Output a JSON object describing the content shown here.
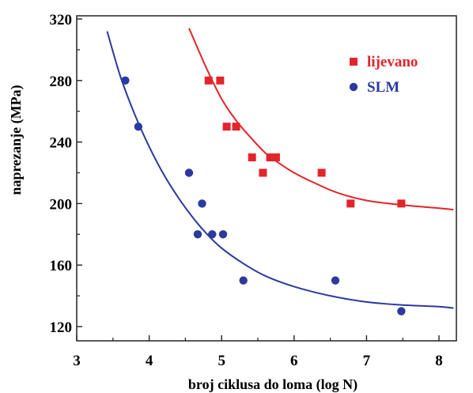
{
  "chart_data": {
    "type": "scatter",
    "title": "",
    "xlabel": "broj ciklusa do loma (log N)",
    "ylabel": "naprezanje (MPa)",
    "xlim": [
      3,
      8.3
    ],
    "ylim": [
      110,
      320
    ],
    "xticks": [
      3,
      4,
      5,
      6,
      7,
      8
    ],
    "yticks": [
      120,
      160,
      200,
      240,
      280,
      320
    ],
    "legend_position": "top-right",
    "series": [
      {
        "name": "lijevano",
        "color": "#e3242b",
        "marker": "square",
        "points": [
          [
            4.82,
            280
          ],
          [
            4.98,
            280
          ],
          [
            5.07,
            250
          ],
          [
            5.2,
            250
          ],
          [
            5.42,
            230
          ],
          [
            5.57,
            220
          ],
          [
            5.67,
            230
          ],
          [
            5.75,
            230
          ],
          [
            6.38,
            220
          ],
          [
            6.78,
            200
          ],
          [
            7.48,
            200
          ]
        ],
        "fit_curve": [
          [
            4.55,
            314
          ],
          [
            4.8,
            287
          ],
          [
            5.0,
            268
          ],
          [
            5.2,
            254
          ],
          [
            5.4,
            243
          ],
          [
            5.6,
            233
          ],
          [
            5.8,
            226
          ],
          [
            6.0,
            220
          ],
          [
            6.3,
            213
          ],
          [
            6.6,
            207
          ],
          [
            7.0,
            202
          ],
          [
            7.5,
            199
          ],
          [
            8.0,
            197
          ],
          [
            8.2,
            196
          ]
        ]
      },
      {
        "name": "SLM",
        "color": "#2b3a9e",
        "marker": "circle",
        "points": [
          [
            3.67,
            280
          ],
          [
            3.85,
            250
          ],
          [
            4.55,
            220
          ],
          [
            4.73,
            200
          ],
          [
            4.67,
            180
          ],
          [
            4.87,
            180
          ],
          [
            5.02,
            180
          ],
          [
            5.3,
            150
          ],
          [
            6.57,
            150
          ],
          [
            7.48,
            130
          ]
        ],
        "fit_curve": [
          [
            3.42,
            312
          ],
          [
            3.6,
            283
          ],
          [
            3.8,
            258
          ],
          [
            4.0,
            237
          ],
          [
            4.2,
            219
          ],
          [
            4.4,
            204
          ],
          [
            4.6,
            191
          ],
          [
            4.8,
            180
          ],
          [
            5.0,
            171
          ],
          [
            5.3,
            161
          ],
          [
            5.6,
            153
          ],
          [
            6.0,
            146
          ],
          [
            6.5,
            140
          ],
          [
            7.0,
            136
          ],
          [
            7.5,
            134
          ],
          [
            8.0,
            133
          ],
          [
            8.2,
            132
          ]
        ]
      }
    ]
  }
}
